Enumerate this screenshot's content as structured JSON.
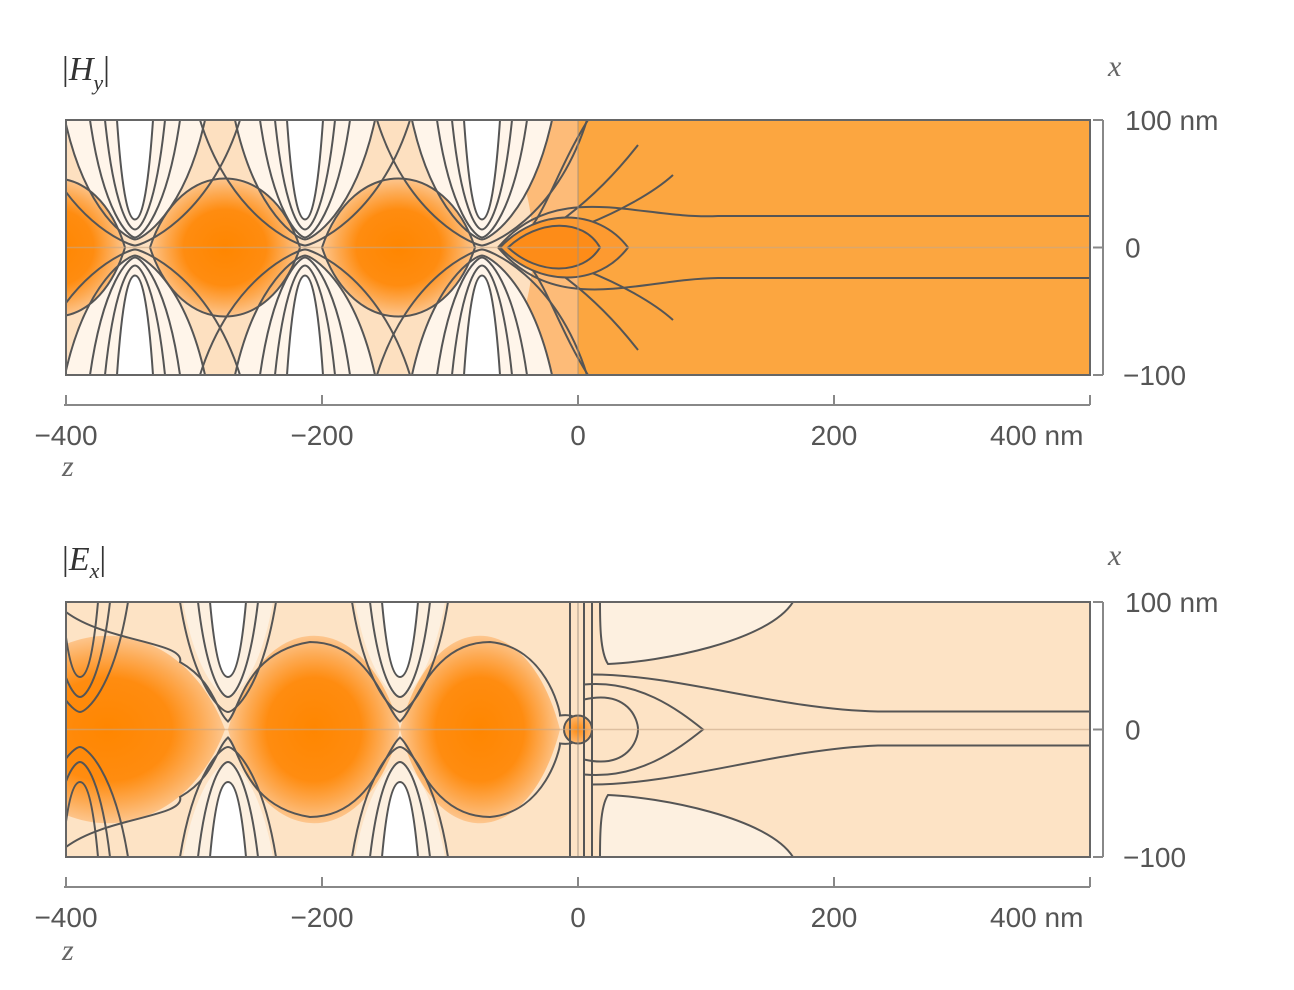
{
  "chart_data": [
    {
      "type": "contour",
      "title": "|Hy|",
      "title_main": "H",
      "title_sub": "y",
      "xlabel": "z",
      "ylabel": "x",
      "xlim": [
        -400,
        400
      ],
      "ylim": [
        -100,
        100
      ],
      "x_ticks": [
        "−400",
        "−200",
        "0",
        "200",
        "400 nm"
      ],
      "x_tick_values": [
        -400,
        -200,
        0,
        200,
        400
      ],
      "y_ticks": [
        "100 nm",
        "0",
        "−100"
      ],
      "y_tick_values": [
        100,
        0,
        -100
      ],
      "colors": {
        "max": "#ff8800",
        "high": "#fca640",
        "mid": "#fde0c0",
        "low": "#fff5ea",
        "min": "#ffffff",
        "line": "#555555"
      }
    },
    {
      "type": "contour",
      "title": "|Ex|",
      "title_main": "E",
      "title_sub": "x",
      "xlabel": "z",
      "ylabel": "x",
      "xlim": [
        -400,
        400
      ],
      "ylim": [
        -100,
        100
      ],
      "x_ticks": [
        "−400",
        "−200",
        "0",
        "200",
        "400 nm"
      ],
      "x_tick_values": [
        -400,
        -200,
        0,
        200,
        400
      ],
      "y_ticks": [
        "100 nm",
        "0",
        "−100"
      ],
      "y_tick_values": [
        100,
        0,
        -100
      ],
      "colors": {
        "max": "#ff8800",
        "high": "#fca640",
        "mid": "#fde3c5",
        "low": "#fdf0e0",
        "min": "#ffffff",
        "line": "#555555"
      }
    }
  ]
}
